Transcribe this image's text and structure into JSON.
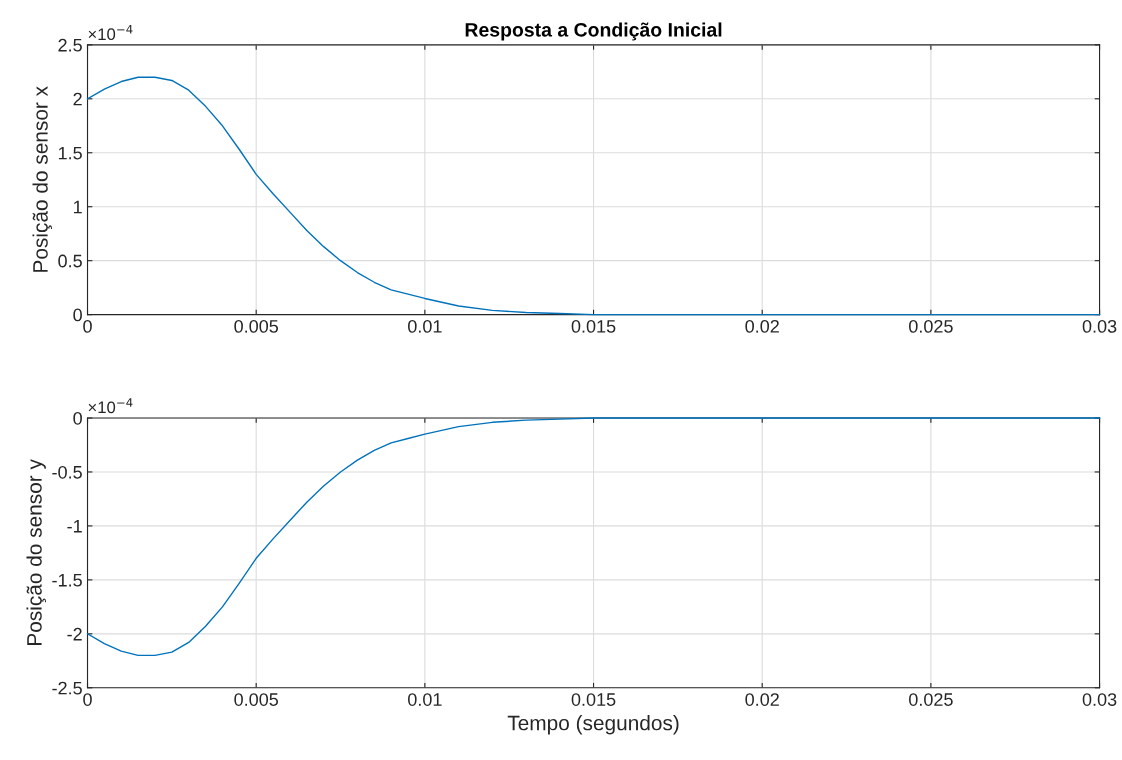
{
  "chart_data": [
    {
      "type": "line",
      "title": "Resposta a Condição Inicial",
      "ylabel": "Posição do sensor x",
      "annotations": [
        "×10$^{−4}$"
      ],
      "grid": true,
      "xlim": [
        0,
        0.03
      ],
      "ylim": [
        0,
        2.5
      ],
      "xticks": [
        0,
        0.005,
        0.01,
        0.015,
        0.02,
        0.025,
        0.03
      ],
      "yticks": [
        0,
        0.5,
        1,
        1.5,
        2,
        2.5
      ],
      "x": [
        0,
        0.0005,
        0.001,
        0.0015,
        0.002,
        0.0025,
        0.003,
        0.0035,
        0.004,
        0.0045,
        0.005,
        0.0055,
        0.006,
        0.0065,
        0.007,
        0.0075,
        0.008,
        0.0085,
        0.009,
        0.0095,
        0.01,
        0.011,
        0.012,
        0.013,
        0.014,
        0.015,
        0.02,
        0.025,
        0.03
      ],
      "series": [
        {
          "color": "#0072bd",
          "values": [
            2.0,
            2.09,
            2.16,
            2.2,
            2.2,
            2.17,
            2.08,
            1.93,
            1.75,
            1.53,
            1.3,
            1.12,
            0.95,
            0.78,
            0.63,
            0.5,
            0.39,
            0.3,
            0.23,
            0.19,
            0.15,
            0.08,
            0.04,
            0.02,
            0.01,
            0.0,
            0.0,
            0.0,
            0.0
          ]
        }
      ]
    },
    {
      "type": "line",
      "xlabel": "Tempo (segundos)",
      "ylabel": "Posição do sensor y",
      "annotations": [
        "×10$^{−4}$"
      ],
      "grid": true,
      "xlim": [
        0,
        0.03
      ],
      "ylim": [
        -2.5,
        0
      ],
      "xticks": [
        0,
        0.005,
        0.01,
        0.015,
        0.02,
        0.025,
        0.03
      ],
      "yticks": [
        -2.5,
        -2,
        -1.5,
        -1,
        -0.5,
        0
      ],
      "x": [
        0,
        0.0005,
        0.001,
        0.0015,
        0.002,
        0.0025,
        0.003,
        0.0035,
        0.004,
        0.0045,
        0.005,
        0.0055,
        0.006,
        0.0065,
        0.007,
        0.0075,
        0.008,
        0.0085,
        0.009,
        0.0095,
        0.01,
        0.011,
        0.012,
        0.013,
        0.014,
        0.015,
        0.02,
        0.025,
        0.03
      ],
      "series": [
        {
          "color": "#0072bd",
          "values": [
            -2.0,
            -2.09,
            -2.16,
            -2.2,
            -2.2,
            -2.17,
            -2.08,
            -1.93,
            -1.75,
            -1.53,
            -1.3,
            -1.12,
            -0.95,
            -0.78,
            -0.63,
            -0.5,
            -0.39,
            -0.3,
            -0.23,
            -0.19,
            -0.15,
            -0.08,
            -0.04,
            -0.02,
            -0.01,
            0.0,
            0.0,
            0.0,
            0.0
          ]
        }
      ]
    }
  ]
}
